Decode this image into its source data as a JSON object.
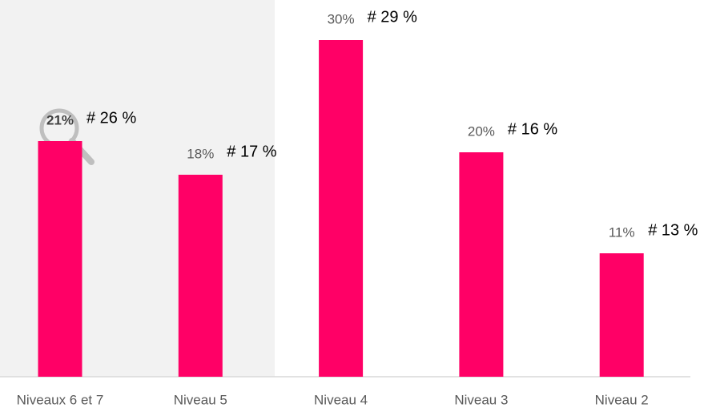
{
  "chart_data": {
    "type": "bar",
    "categories": [
      "Niveaux 6 et 7",
      "Niveau 5",
      "Niveau 4",
      "Niveau 3",
      "Niveau 2"
    ],
    "values": [
      21,
      18,
      30,
      20,
      11
    ],
    "value_labels": [
      "21%",
      "18%",
      "30%",
      "20%",
      "11%"
    ],
    "annotations": [
      "# 26 %",
      "# 17 %",
      "# 29 %",
      "# 16 %",
      "# 13 %"
    ],
    "color": "#ff0066",
    "highlight": 0
  }
}
